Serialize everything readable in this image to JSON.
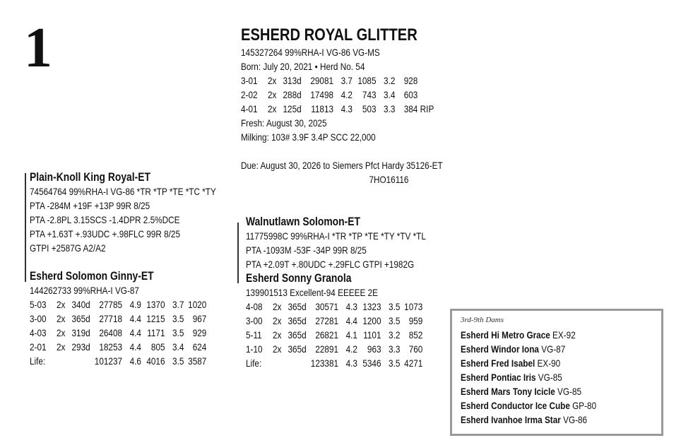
{
  "lot_number": "1",
  "animal": {
    "name": "ESHERD ROYAL GLITTER",
    "id_line": "145327264 99%RHA-I VG-86 VG-MS",
    "born_line": "Born:  July 20, 2021 • Herd No. 54",
    "records": [
      [
        "3-01",
        "2x",
        "313d",
        "29081",
        "3.7",
        "1085",
        "3.2",
        "928",
        ""
      ],
      [
        "2-02",
        "2x",
        "288d",
        "17498",
        "4.2",
        "743",
        "3.4",
        "603",
        ""
      ],
      [
        "4-01",
        "2x",
        "125d",
        "11813",
        "4.3",
        "503",
        "3.3",
        "384",
        "RIP"
      ]
    ],
    "fresh": "Fresh: August 30, 2025",
    "milking": "Milking: 103# 3.9F 3.4P SCC 22,000",
    "due": "Due: August 30, 2026 to Siemers Pfct Hardy 35126-ET",
    "due_sire_code": "7HO16116"
  },
  "sire": {
    "name": "Plain-Knoll King Royal-ET",
    "lines": [
      "74564764 99%RHA-I VG-86 *TR *TP *TE *TC *TY",
      "PTA -284M +19F +13P 99R 8/25",
      "PTA -2.8PL 3.15SCS -1.4DPR 2.5%DCE",
      "PTA +1.63T +.93UDC +.98FLC 99R 8/25",
      "GTPI +2587G A2/A2"
    ]
  },
  "dam": {
    "name": "Esherd Solomon Ginny-ET",
    "id_line": "144262733 99%RHA-I VG-87",
    "records": [
      [
        "5-03",
        "2x",
        "340d",
        "27785",
        "4.9",
        "1370",
        "3.7",
        "1020"
      ],
      [
        "3-00",
        "2x",
        "365d",
        "27718",
        "4.4",
        "1215",
        "3.5",
        "967"
      ],
      [
        "4-03",
        "2x",
        "319d",
        "26408",
        "4.4",
        "1171",
        "3.5",
        "929"
      ],
      [
        "2-01",
        "2x",
        "293d",
        "18253",
        "4.4",
        "805",
        "3.4",
        "624"
      ],
      [
        "Life:",
        "",
        "",
        "101237",
        "4.6",
        "4016",
        "3.5",
        "3587"
      ]
    ]
  },
  "maternal_grandsire": {
    "name": "Walnutlawn Solomon-ET",
    "lines": [
      "11775998C 99%RHA-I *TR *TP *TE *TY *TV *TL",
      "PTA -1093M -53F -34P 99R 8/25",
      "PTA +2.09T +.80UDC +.29FLC GTPI +1982G"
    ]
  },
  "granddam": {
    "name": "Esherd Sonny Granola",
    "id_line": "139901513 Excellent-94 EEEEE 2E",
    "records": [
      [
        "4-08",
        "2x",
        "365d",
        "30571",
        "4.3",
        "1323",
        "3.5",
        "1073"
      ],
      [
        "3-00",
        "2x",
        "365d",
        "27281",
        "4.4",
        "1200",
        "3.5",
        "959"
      ],
      [
        "5-11",
        "2x",
        "365d",
        "26821",
        "4.1",
        "1101",
        "3.2",
        "852"
      ],
      [
        "1-10",
        "2x",
        "365d",
        "22891",
        "4.2",
        "963",
        "3.3",
        "760"
      ],
      [
        "Life:",
        "",
        "",
        "123381",
        "4.3",
        "5346",
        "3.5",
        "4271"
      ]
    ]
  },
  "dams_box": {
    "heading": "3rd-9th Dams",
    "items": [
      {
        "name": "Esherd Hi Metro Grace",
        "score": "EX-92"
      },
      {
        "name": "Esherd Windor Iona",
        "score": "VG-87"
      },
      {
        "name": "Esherd Fred Isabel",
        "score": "EX-90"
      },
      {
        "name": "Esherd Pontiac Iris",
        "score": "VG-85"
      },
      {
        "name": "Esherd Mars Tony Icicle",
        "score": "VG-85"
      },
      {
        "name": "Esherd Conductor Ice Cube",
        "score": "GP-80"
      },
      {
        "name": "Esherd Ivanhoe Irma Star",
        "score": "VG-86"
      }
    ]
  }
}
